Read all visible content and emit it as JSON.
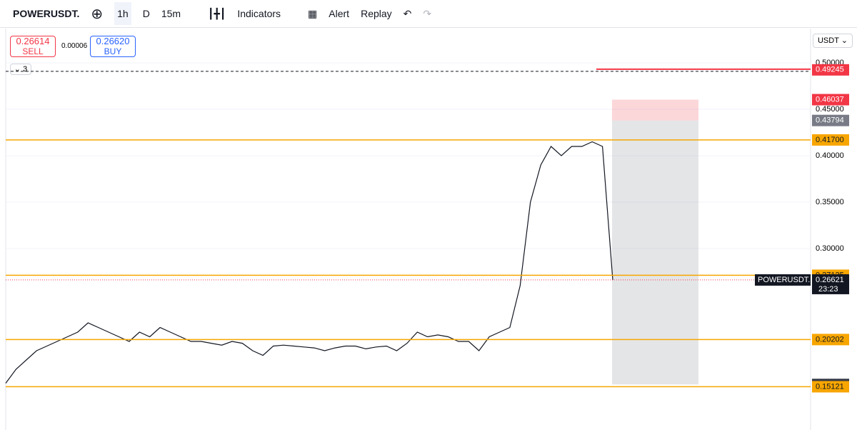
{
  "toolbar": {
    "symbol": "POWERUSDT.",
    "intervals": [
      "1h",
      "D",
      "15m"
    ],
    "indicators": "Indicators",
    "alert": "Alert",
    "replay": "Replay"
  },
  "trade": {
    "sell_price": "0.26614",
    "sell": "SELL",
    "spread": "0.00006",
    "buy_price": "0.26620",
    "buy": "BUY"
  },
  "currency": "USDT",
  "legend_count": "3",
  "chart": {
    "type": "line",
    "ylim": [
      0.14,
      0.5
    ],
    "yticks": [
      {
        "value": 0.5,
        "label": "0.50000"
      },
      {
        "value": 0.45,
        "label": "0.45000"
      },
      {
        "value": 0.4,
        "label": "0.40000"
      },
      {
        "value": 0.35,
        "label": "0.35000"
      },
      {
        "value": 0.3,
        "label": "0.30000"
      }
    ],
    "series": [
      {
        "color": "#131722",
        "values": [
          0.155,
          0.17,
          0.18,
          0.19,
          0.195,
          0.2,
          0.205,
          0.21,
          0.22,
          0.215,
          0.21,
          0.205,
          0.2,
          0.21,
          0.205,
          0.215,
          0.21,
          0.205,
          0.2,
          0.2,
          0.198,
          0.196,
          0.2,
          0.198,
          0.19,
          0.185,
          0.195,
          0.196,
          0.195,
          0.194,
          0.193,
          0.19,
          0.193,
          0.195,
          0.195,
          0.192,
          0.194,
          0.195,
          0.19,
          0.198,
          0.21,
          0.205,
          0.207,
          0.205,
          0.2,
          0.2,
          0.19,
          0.205,
          0.21,
          0.215,
          0.26,
          0.35,
          0.39,
          0.41,
          0.4,
          0.41,
          0.41,
          0.415,
          0.41,
          0.26621
        ]
      }
    ],
    "levels": [
      {
        "value": 0.49245,
        "color": "#f23645"
      },
      {
        "value": 0.46037,
        "color": "#f23645"
      },
      {
        "value": 0.43794,
        "color": "#787b86"
      },
      {
        "value": 0.417,
        "label": "0.41700",
        "color": "#f7a600"
      },
      {
        "value": 0.27125,
        "color": "#f7a600"
      },
      {
        "value": 0.20202,
        "color": "#f7a600"
      },
      {
        "value": 0.15366,
        "color": "#363a45"
      },
      {
        "value": 0.15121,
        "color": "#f7a600"
      }
    ],
    "current": {
      "value": 0.26621,
      "symbol": "POWERUSDT.P",
      "countdown": "23:23"
    }
  }
}
